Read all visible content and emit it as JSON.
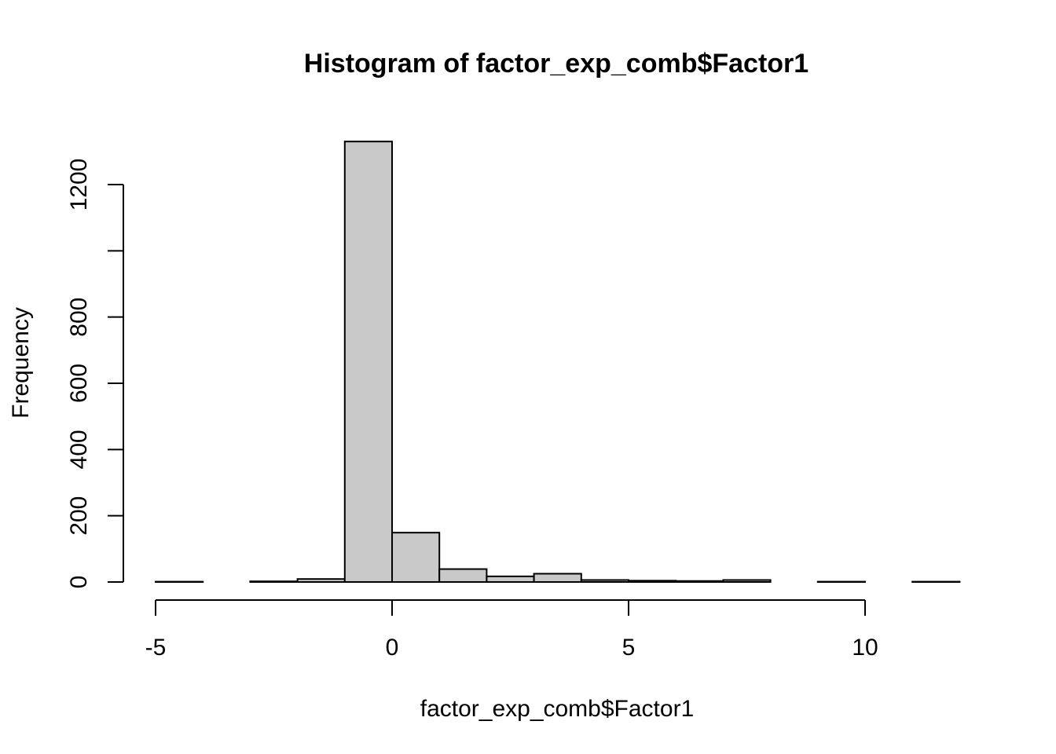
{
  "chart_data": {
    "type": "histogram",
    "title": "Histogram of factor_exp_comb$Factor1",
    "xlabel": "factor_exp_comb$Factor1",
    "ylabel": "Frequency",
    "bins": [
      {
        "x0": -5,
        "x1": -4,
        "count": 1
      },
      {
        "x0": -4,
        "x1": -3,
        "count": 0
      },
      {
        "x0": -3,
        "x1": -2,
        "count": 2
      },
      {
        "x0": -2,
        "x1": -1,
        "count": 9
      },
      {
        "x0": -1,
        "x1": 0,
        "count": 1330
      },
      {
        "x0": 0,
        "x1": 1,
        "count": 149
      },
      {
        "x0": 1,
        "x1": 2,
        "count": 39
      },
      {
        "x0": 2,
        "x1": 3,
        "count": 17
      },
      {
        "x0": 3,
        "x1": 4,
        "count": 25
      },
      {
        "x0": 4,
        "x1": 5,
        "count": 6
      },
      {
        "x0": 5,
        "x1": 6,
        "count": 4
      },
      {
        "x0": 6,
        "x1": 7,
        "count": 3
      },
      {
        "x0": 7,
        "x1": 8,
        "count": 6
      },
      {
        "x0": 8,
        "x1": 9,
        "count": 0
      },
      {
        "x0": 9,
        "x1": 10,
        "count": 1
      },
      {
        "x0": 10,
        "x1": 11,
        "count": 0
      },
      {
        "x0": 11,
        "x1": 12,
        "count": 1
      }
    ],
    "xlim": [
      -5,
      12
    ],
    "ylim": [
      0,
      1330
    ],
    "x_ticks": [
      -5,
      0,
      5,
      10
    ],
    "x_tick_labels": [
      "-5",
      "0",
      "5",
      "10"
    ],
    "y_ticks": [
      0,
      200,
      400,
      600,
      800,
      1000,
      1200
    ],
    "y_tick_labels": [
      "0",
      "200",
      "400",
      "600",
      "800",
      "",
      "1200"
    ],
    "bar_color": "#c9c9c9",
    "edge_color": "#000000",
    "grid": false
  }
}
